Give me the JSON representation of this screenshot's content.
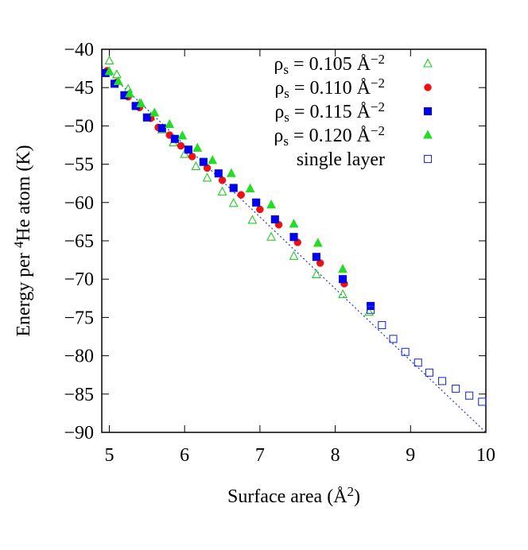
{
  "chart_data": {
    "type": "scatter",
    "title": "",
    "xlabel": {
      "main": "Surface area (Å",
      "sup": "2",
      "tail": ")"
    },
    "ylabel": {
      "pre": "Energy per ",
      "sup": "4",
      "post": "He atom (K)"
    },
    "xlim": [
      4.9,
      10.0
    ],
    "ylim": [
      -90,
      -40
    ],
    "xticks": [
      5,
      6,
      7,
      8,
      9,
      10
    ],
    "yticks": [
      -40,
      -45,
      -50,
      -55,
      -60,
      -65,
      -70,
      -75,
      -80,
      -85,
      -90
    ],
    "ytick_labels": [
      "−40",
      "−45",
      "−50",
      "−55",
      "−60",
      "−65",
      "−70",
      "−75",
      "−80",
      "−85",
      "−90"
    ],
    "grid": false,
    "legend_position": "top-right",
    "series": [
      {
        "name": {
          "pre": "ρ",
          "sub": "s",
          "mid": " = 0.105 Å",
          "sup": "−2"
        },
        "marker": "triangle-open",
        "color": "#22cc22",
        "x": [
          5.0,
          5.1,
          5.25,
          5.4,
          5.55,
          5.7,
          5.85,
          6.0,
          6.15,
          6.3,
          6.5,
          6.65,
          6.9,
          7.15,
          7.45,
          7.75,
          8.1,
          8.45
        ],
        "y": [
          -41.5,
          -43.3,
          -45.2,
          -47.1,
          -48.8,
          -50.5,
          -52.2,
          -53.7,
          -55.3,
          -56.8,
          -58.6,
          -60.1,
          -62.3,
          -64.5,
          -67.0,
          -69.4,
          -72.0,
          -74.3
        ]
      },
      {
        "name": {
          "pre": "ρ",
          "sub": "s",
          "mid": " = 0.110 Å",
          "sup": "−2"
        },
        "marker": "circle",
        "color": "#ee1111",
        "x": [
          4.97,
          5.1,
          5.25,
          5.4,
          5.55,
          5.65,
          5.8,
          5.95,
          6.1,
          6.3,
          6.5,
          6.75,
          7.0,
          7.25,
          7.5,
          7.8,
          8.12
        ],
        "y": [
          -42.8,
          -44.3,
          -46.2,
          -47.6,
          -49.0,
          -50.2,
          -51.2,
          -52.6,
          -54.0,
          -55.5,
          -57.1,
          -59.0,
          -60.9,
          -62.9,
          -65.2,
          -67.9,
          -70.6
        ]
      },
      {
        "name": {
          "pre": "ρ",
          "sub": "s",
          "mid": " = 0.115 Å",
          "sup": "−2"
        },
        "marker": "square",
        "color": "#0000ee",
        "x": [
          4.95,
          5.07,
          5.2,
          5.35,
          5.5,
          5.7,
          5.87,
          6.05,
          6.25,
          6.45,
          6.65,
          6.95,
          7.2,
          7.45,
          7.75,
          8.1,
          8.47
        ],
        "y": [
          -43.1,
          -44.5,
          -46.0,
          -47.4,
          -48.9,
          -50.3,
          -51.7,
          -53.1,
          -54.7,
          -56.2,
          -58.1,
          -60.0,
          -62.2,
          -64.5,
          -67.1,
          -70.0,
          -73.5
        ]
      },
      {
        "name": {
          "pre": "ρ",
          "sub": "s",
          "mid": " = 0.120 Å",
          "sup": "−2"
        },
        "marker": "triangle",
        "color": "#22dd22",
        "x": [
          5.0,
          5.12,
          5.27,
          5.42,
          5.6,
          5.8,
          5.97,
          6.17,
          6.37,
          6.62,
          6.87,
          7.15,
          7.45,
          7.77,
          8.1
        ],
        "y": [
          -42.9,
          -44.2,
          -45.8,
          -47.1,
          -48.3,
          -49.8,
          -51.3,
          -52.9,
          -54.5,
          -56.2,
          -58.2,
          -60.3,
          -62.8,
          -65.3,
          -68.7
        ]
      },
      {
        "name": {
          "pre": "",
          "sub": "",
          "mid": "single layer",
          "sup": ""
        },
        "marker": "square-open",
        "color": "#2233dd",
        "x": [
          8.47,
          8.62,
          8.77,
          8.93,
          9.1,
          9.25,
          9.42,
          9.6,
          9.78,
          9.95
        ],
        "y": [
          -74.0,
          -76.0,
          -77.8,
          -79.5,
          -80.9,
          -82.2,
          -83.3,
          -84.3,
          -85.2,
          -86.0
        ]
      }
    ],
    "fit_line": {
      "style": "dotted",
      "color": "#2233dd",
      "x": [
        4.9,
        10.0
      ],
      "y": [
        -42.2,
        -90.0
      ]
    }
  }
}
